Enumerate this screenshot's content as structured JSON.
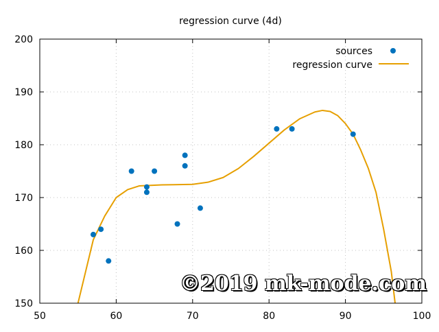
{
  "chart_data": {
    "type": "scatter",
    "title": "regression curve (4d)",
    "xlim": [
      50,
      100
    ],
    "ylim": [
      150,
      200
    ],
    "xticks": [
      50,
      60,
      70,
      80,
      90,
      100
    ],
    "yticks": [
      150,
      160,
      170,
      180,
      190,
      200
    ],
    "grid": true,
    "legend_position": "top-right",
    "series": [
      {
        "name": "sources",
        "kind": "points",
        "color": "#0072bd",
        "points": [
          [
            57,
            163
          ],
          [
            58,
            164
          ],
          [
            59,
            158
          ],
          [
            62,
            175
          ],
          [
            64,
            172
          ],
          [
            64,
            171
          ],
          [
            65,
            175
          ],
          [
            68,
            165
          ],
          [
            69,
            178
          ],
          [
            69,
            176
          ],
          [
            71,
            168
          ],
          [
            81,
            183
          ],
          [
            83,
            183
          ],
          [
            91,
            182
          ]
        ]
      },
      {
        "name": "regression curve",
        "kind": "line",
        "color": "#e69f00",
        "points": [
          [
            55.0,
            150
          ],
          [
            56,
            156
          ],
          [
            57,
            162
          ],
          [
            58.5,
            166.5
          ],
          [
            60,
            170
          ],
          [
            61.5,
            171.5
          ],
          [
            63,
            172.2
          ],
          [
            66,
            172.4
          ],
          [
            70,
            172.5
          ],
          [
            72,
            172.9
          ],
          [
            74,
            173.8
          ],
          [
            76,
            175.5
          ],
          [
            78,
            177.8
          ],
          [
            80,
            180.3
          ],
          [
            82,
            182.8
          ],
          [
            84,
            184.9
          ],
          [
            86,
            186.2
          ],
          [
            87,
            186.5
          ],
          [
            88,
            186.3
          ],
          [
            89,
            185.5
          ],
          [
            90,
            184.0
          ],
          [
            91,
            182
          ],
          [
            92,
            179
          ],
          [
            93,
            175.5
          ],
          [
            94,
            171
          ],
          [
            95,
            164
          ],
          [
            96,
            156
          ],
          [
            96.5,
            150
          ]
        ]
      }
    ]
  },
  "watermark": "©2019 mk-mode.com"
}
